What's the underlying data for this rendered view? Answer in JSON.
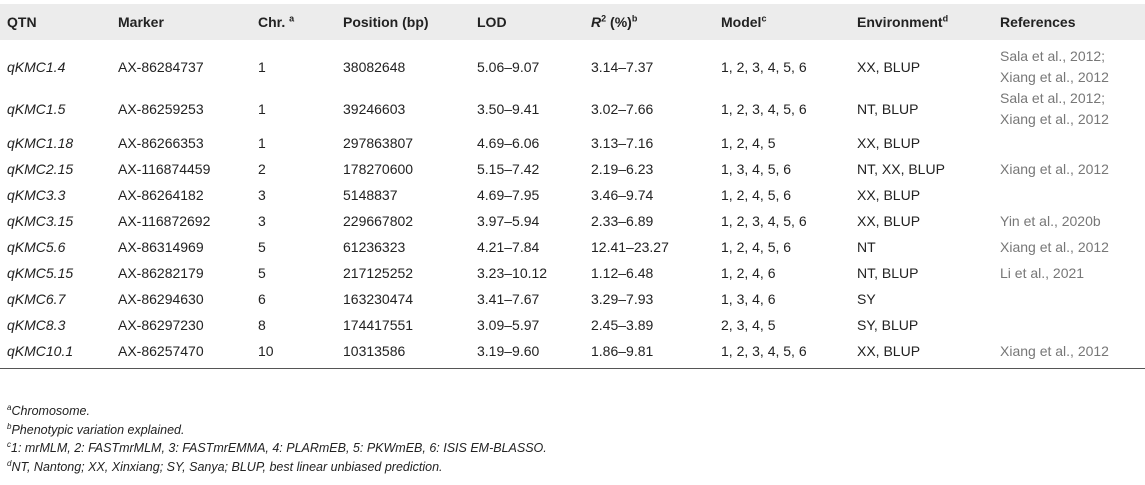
{
  "table": {
    "headers": [
      {
        "text": "QTN",
        "sup": ""
      },
      {
        "text": "Marker",
        "sup": ""
      },
      {
        "text": "Chr.",
        "sup": "a"
      },
      {
        "text": "Position (bp)",
        "sup": ""
      },
      {
        "text": "LOD",
        "sup": ""
      },
      {
        "text_pre": "R",
        "sup1": "2",
        "text": " (%)",
        "sup": "b"
      },
      {
        "text": "Model",
        "sup": "c"
      },
      {
        "text": "Environment",
        "sup": "d"
      },
      {
        "text": "References",
        "sup": ""
      }
    ],
    "rows": [
      {
        "qtn": "qKMC1.4",
        "marker": "AX-86284737",
        "chr": "1",
        "position": "38082648",
        "lod": "5.06–9.07",
        "r2": "3.14–7.37",
        "model": "1, 2, 3, 4, 5, 6",
        "env": "XX, BLUP",
        "ref1": "Sala et al., 2012;",
        "ref2": "Xiang et al., 2012"
      },
      {
        "qtn": "qKMC1.5",
        "marker": "AX-86259253",
        "chr": "1",
        "position": "39246603",
        "lod": "3.50–9.41",
        "r2": "3.02–7.66",
        "model": "1, 2, 3, 4, 5, 6",
        "env": "NT, BLUP",
        "ref1": "Sala et al., 2012;",
        "ref2": "Xiang et al., 2012"
      },
      {
        "qtn": "qKMC1.18",
        "marker": "AX-86266353",
        "chr": "1",
        "position": "297863807",
        "lod": "4.69–6.06",
        "r2": "3.13–7.16",
        "model": "1, 2, 4, 5",
        "env": "XX, BLUP",
        "ref1": "",
        "ref2": ""
      },
      {
        "qtn": "qKMC2.15",
        "marker": "AX-116874459",
        "chr": "2",
        "position": "178270600",
        "lod": "5.15–7.42",
        "r2": "2.19–6.23",
        "model": "1, 3, 4, 5, 6",
        "env": "NT, XX, BLUP",
        "ref1": "Xiang et al., 2012",
        "ref2": ""
      },
      {
        "qtn": "qKMC3.3",
        "marker": "AX-86264182",
        "chr": "3",
        "position": "5148837",
        "lod": "4.69–7.95",
        "r2": "3.46–9.74",
        "model": "1, 2, 4, 5, 6",
        "env": "XX, BLUP",
        "ref1": "",
        "ref2": ""
      },
      {
        "qtn": "qKMC3.15",
        "marker": "AX-116872692",
        "chr": "3",
        "position": "229667802",
        "lod": "3.97–5.94",
        "r2": "2.33–6.89",
        "model": "1, 2, 3, 4, 5, 6",
        "env": "XX, BLUP",
        "ref1": "Yin et al., 2020b",
        "ref2": ""
      },
      {
        "qtn": "qKMC5.6",
        "marker": "AX-86314969",
        "chr": "5",
        "position": "61236323",
        "lod": "4.21–7.84",
        "r2": "12.41–23.27",
        "model": "1, 2, 4, 5, 6",
        "env": "NT",
        "ref1": "Xiang et al., 2012",
        "ref2": ""
      },
      {
        "qtn": "qKMC5.15",
        "marker": "AX-86282179",
        "chr": "5",
        "position": "217125252",
        "lod": "3.23–10.12",
        "r2": "1.12–6.48",
        "model": "1, 2, 4, 6",
        "env": "NT, BLUP",
        "ref1": "Li et al., 2021",
        "ref2": ""
      },
      {
        "qtn": "qKMC6.7",
        "marker": "AX-86294630",
        "chr": "6",
        "position": "163230474",
        "lod": "3.41–7.67",
        "r2": "3.29–7.93",
        "model": "1, 3, 4, 6",
        "env": "SY",
        "ref1": "",
        "ref2": ""
      },
      {
        "qtn": "qKMC8.3",
        "marker": "AX-86297230",
        "chr": "8",
        "position": "174417551",
        "lod": "3.09–5.97",
        "r2": "2.45–3.89",
        "model": "2, 3, 4, 5",
        "env": "SY, BLUP",
        "ref1": "",
        "ref2": ""
      },
      {
        "qtn": "qKMC10.1",
        "marker": "AX-86257470",
        "chr": "10",
        "position": "10313586",
        "lod": "3.19–9.60",
        "r2": "1.86–9.81",
        "model": "1, 2, 3, 4, 5, 6",
        "env": "XX, BLUP",
        "ref1": "Xiang et al., 2012",
        "ref2": ""
      }
    ]
  },
  "footnotes": [
    {
      "mark": "a",
      "text": "Chromosome."
    },
    {
      "mark": "b",
      "text": "Phenotypic variation explained."
    },
    {
      "mark": "c",
      "text": "1: mrMLM, 2: FASTmrMLM, 3: FASTmrEMMA, 4: PLARmEB, 5: PKWmEB, 6: ISIS EM-BLASSO."
    },
    {
      "mark": "d",
      "text": "NT, Nantong; XX, Xinxiang; SY, Sanya; BLUP, best linear unbiased prediction."
    }
  ]
}
